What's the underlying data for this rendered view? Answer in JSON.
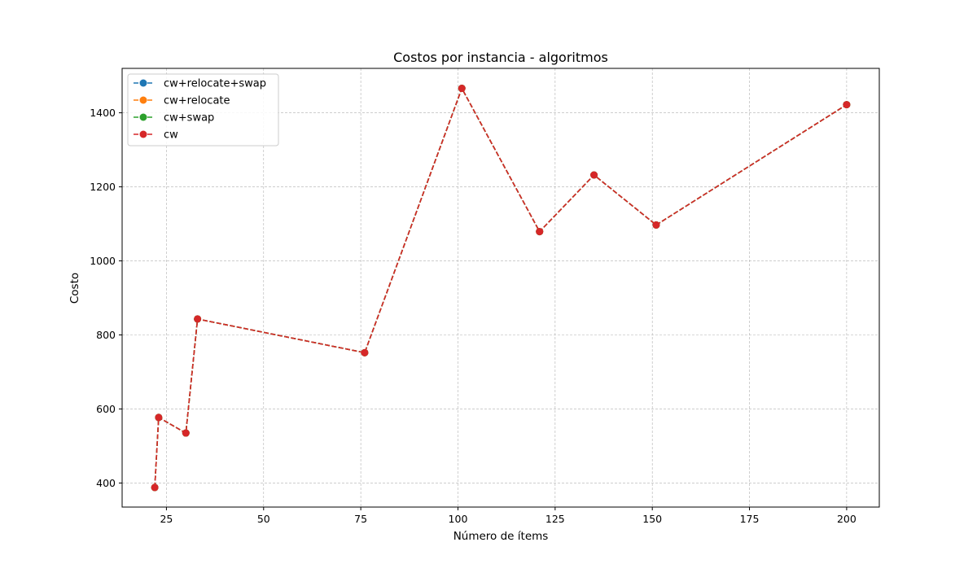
{
  "chart_data": {
    "type": "line",
    "title": "Costos por instancia - algoritmos",
    "xlabel": "Número de ítems",
    "ylabel": "Costo",
    "xlim": [
      13.6,
      208.4
    ],
    "ylim": [
      335,
      1520
    ],
    "xticks": [
      25,
      50,
      75,
      100,
      125,
      150,
      175,
      200
    ],
    "yticks": [
      400,
      600,
      800,
      1000,
      1200,
      1400
    ],
    "grid": true,
    "legend_position": "top-left",
    "x": [
      22,
      23,
      30,
      33,
      76,
      101,
      121,
      135,
      151,
      200
    ],
    "series": [
      {
        "name": "cw+relocate+swap",
        "color": "#1f77b4",
        "values": [
          388,
          577,
          535,
          843,
          752,
          1466,
          1079,
          1232,
          1097,
          1422
        ]
      },
      {
        "name": "cw+relocate",
        "color": "#ff7f0e",
        "values": [
          388,
          577,
          535,
          843,
          752,
          1466,
          1079,
          1232,
          1097,
          1422
        ]
      },
      {
        "name": "cw+swap",
        "color": "#2ca02c",
        "values": [
          388,
          577,
          535,
          843,
          752,
          1466,
          1079,
          1232,
          1097,
          1422
        ]
      },
      {
        "name": "cw",
        "color": "#d62728",
        "values": [
          388,
          577,
          535,
          843,
          752,
          1466,
          1079,
          1232,
          1097,
          1422
        ]
      }
    ]
  }
}
